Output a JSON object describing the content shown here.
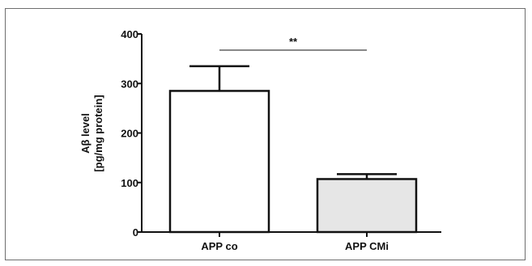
{
  "chart_data": {
    "type": "bar",
    "categories": [
      "APP co",
      "APP CMi"
    ],
    "values": [
      285,
      107
    ],
    "errors": [
      50,
      10
    ],
    "ylabel_line1": "Aβ level",
    "ylabel_line2": "[pg/mg protein]",
    "ylim": [
      0,
      400
    ],
    "yticks": [
      0,
      100,
      200,
      300,
      400
    ],
    "significance": {
      "between": [
        0,
        1
      ],
      "label": "**"
    },
    "colors": {
      "bars": [
        "#ffffff",
        "#e6e6e6"
      ],
      "stroke": "#111111"
    }
  }
}
